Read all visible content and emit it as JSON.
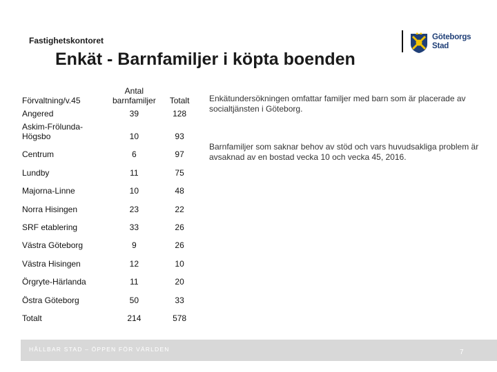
{
  "header": {
    "department": "Fastighetskontoret",
    "title": "Enkät - Barnfamiljer i köpta boenden",
    "logo_text_line1": "Göteborgs",
    "logo_text_line2": "Stad"
  },
  "table": {
    "headers": [
      "Förvaltning/v.45",
      "Antal barnfamiljer",
      "Totalt"
    ],
    "rows": [
      [
        "Angered",
        "39",
        "128"
      ],
      [
        "Askim-Frölunda-Högsbo",
        "10",
        "93"
      ],
      [
        "Centrum",
        "6",
        "97"
      ],
      [
        "Lundby",
        "11",
        "75"
      ],
      [
        "Majorna-Linne",
        "10",
        "48"
      ],
      [
        "Norra Hisingen",
        "23",
        "22"
      ],
      [
        "SRF etablering",
        "33",
        "26"
      ],
      [
        "Västra Göteborg",
        "9",
        "26"
      ],
      [
        "Västra Hisingen",
        "12",
        "10"
      ],
      [
        "Örgryte-Härlanda",
        "11",
        "20"
      ],
      [
        "Östra Göteborg",
        "50",
        "33"
      ],
      [
        "Totalt",
        "214",
        "578"
      ]
    ]
  },
  "side_text": {
    "paragraph1": "Enkätundersökningen omfattar familjer med barn som är placerade av socialtjänsten i Göteborg.",
    "paragraph2": "Barnfamiljer som saknar behov av stöd och vars huvudsakliga problem är avsaknad av en bostad vecka 10 och vecka 45, 2016."
  },
  "footer": {
    "slogan": "HÅLLBAR STAD – ÖPPEN FÖR VÄRLDEN",
    "page_number": "7"
  },
  "colors": {
    "brand_blue": "#1f3f77",
    "logo_yellow": "#f2c200",
    "footer_gray": "#d8d8d8"
  }
}
